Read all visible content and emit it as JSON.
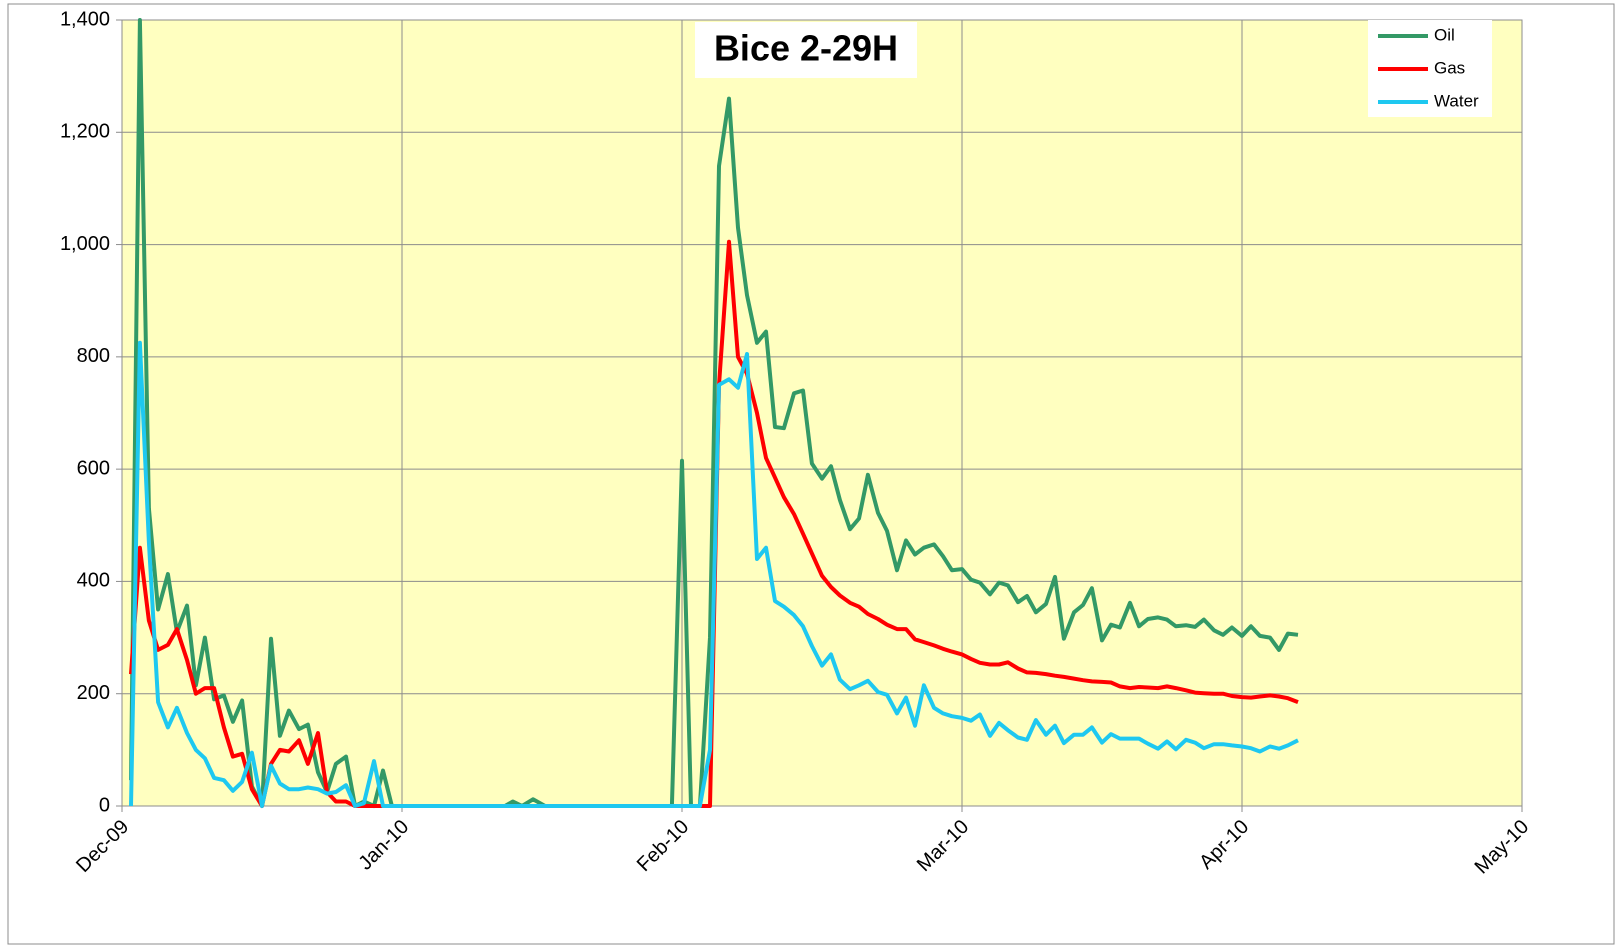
{
  "chart_data": {
    "type": "line",
    "title": "Bice 2-29H",
    "x": [
      0.032,
      0.064,
      0.096,
      0.129,
      0.164,
      0.196,
      0.232,
      0.264,
      0.296,
      0.329,
      0.364,
      0.396,
      0.429,
      0.464,
      0.5,
      0.532,
      0.564,
      0.596,
      0.632,
      0.664,
      0.7,
      0.732,
      0.764,
      0.8,
      0.832,
      0.864,
      0.9,
      0.932,
      0.964,
      1.0,
      1.368,
      1.396,
      1.429,
      1.468,
      1.511,
      1.964,
      2.0,
      2.032,
      2.064,
      2.1,
      2.132,
      2.168,
      2.2,
      2.232,
      2.268,
      2.3,
      2.332,
      2.364,
      2.4,
      2.432,
      2.464,
      2.5,
      2.532,
      2.564,
      2.6,
      2.632,
      2.664,
      2.7,
      2.732,
      2.768,
      2.8,
      2.832,
      2.864,
      2.9,
      2.932,
      2.964,
      3.0,
      3.032,
      3.064,
      3.1,
      3.132,
      3.164,
      3.2,
      3.232,
      3.264,
      3.3,
      3.332,
      3.364,
      3.4,
      3.432,
      3.464,
      3.5,
      3.532,
      3.564,
      3.6,
      3.632,
      3.664,
      3.7,
      3.732,
      3.764,
      3.8,
      3.832,
      3.864,
      3.9,
      3.932,
      3.964,
      4.0,
      4.032,
      4.064,
      4.1,
      4.132,
      4.164,
      4.2
    ],
    "series": [
      {
        "name": "Oil",
        "color": "#339966",
        "values": [
          46,
          1400,
          530,
          350,
          413,
          310,
          357,
          215,
          300,
          190,
          197,
          150,
          188,
          35,
          0,
          298,
          125,
          170,
          137,
          145,
          60,
          25,
          75,
          88,
          0,
          8,
          0,
          63,
          0,
          0,
          0,
          8,
          0,
          12,
          0,
          0,
          615,
          0,
          0,
          300,
          1140,
          1260,
          1030,
          910,
          825,
          845,
          675,
          673,
          735,
          740,
          610,
          583,
          605,
          545,
          493,
          512,
          590,
          522,
          490,
          420,
          473,
          448,
          460,
          466,
          445,
          420,
          422,
          403,
          398,
          377,
          398,
          393,
          363,
          374,
          345,
          360,
          408,
          298,
          345,
          358,
          388,
          295,
          323,
          318,
          362,
          320,
          333,
          336,
          332,
          320,
          322,
          319,
          332,
          313,
          305,
          318,
          303,
          320,
          303,
          300,
          278,
          307,
          305
        ]
      },
      {
        "name": "Gas",
        "color": "#ff0000",
        "values": [
          235,
          460,
          330,
          278,
          287,
          315,
          260,
          200,
          210,
          210,
          140,
          88,
          93,
          30,
          0,
          75,
          100,
          97,
          117,
          75,
          130,
          25,
          8,
          8,
          0,
          0,
          0,
          0,
          0,
          0,
          0,
          0,
          0,
          0,
          0,
          0,
          0,
          0,
          0,
          0,
          750,
          1005,
          800,
          770,
          700,
          620,
          585,
          550,
          520,
          485,
          450,
          410,
          390,
          375,
          362,
          355,
          342,
          333,
          323,
          315,
          315,
          297,
          292,
          286,
          280,
          275,
          270,
          262,
          255,
          252,
          252,
          256,
          245,
          238,
          237,
          235,
          232,
          230,
          227,
          224,
          222,
          221,
          220,
          213,
          210,
          212,
          211,
          210,
          213,
          210,
          206,
          202,
          201,
          200,
          200,
          196,
          194,
          193,
          195,
          197,
          195,
          192,
          185
        ]
      },
      {
        "name": "Water",
        "color": "#1ec8f0",
        "values": [
          0,
          825,
          470,
          185,
          140,
          175,
          130,
          100,
          85,
          50,
          46,
          27,
          43,
          95,
          0,
          72,
          40,
          30,
          30,
          33,
          30,
          22,
          25,
          37,
          0,
          5,
          80,
          0,
          0,
          0,
          0,
          0,
          0,
          0,
          0,
          0,
          0,
          0,
          0,
          100,
          750,
          760,
          745,
          805,
          440,
          460,
          365,
          355,
          340,
          320,
          285,
          250,
          270,
          225,
          208,
          215,
          223,
          203,
          198,
          165,
          193,
          143,
          215,
          175,
          165,
          160,
          157,
          152,
          163,
          125,
          148,
          135,
          122,
          118,
          153,
          127,
          143,
          112,
          127,
          127,
          140,
          113,
          128,
          120,
          120,
          120,
          111,
          102,
          115,
          101,
          118,
          113,
          103,
          110,
          110,
          108,
          106,
          103,
          97,
          106,
          102,
          108,
          117
        ]
      }
    ],
    "xlim": [
      0,
      5
    ],
    "xticks": [
      {
        "value": 0,
        "label": "Dec-09"
      },
      {
        "value": 1,
        "label": "Jan-10"
      },
      {
        "value": 2,
        "label": "Feb-10"
      },
      {
        "value": 3,
        "label": "Mar-10"
      },
      {
        "value": 4,
        "label": "Apr-10"
      },
      {
        "value": 5,
        "label": "May-10"
      }
    ],
    "ylim": [
      0,
      1400
    ],
    "yticks": [
      0,
      200,
      400,
      600,
      800,
      {
        "value": 1000,
        "label": "1,000"
      },
      {
        "value": 1200,
        "label": "1,200"
      },
      {
        "value": 1400,
        "label": "1,400"
      }
    ],
    "grid": true,
    "legend": "upper right",
    "background": "#ffffc0"
  }
}
